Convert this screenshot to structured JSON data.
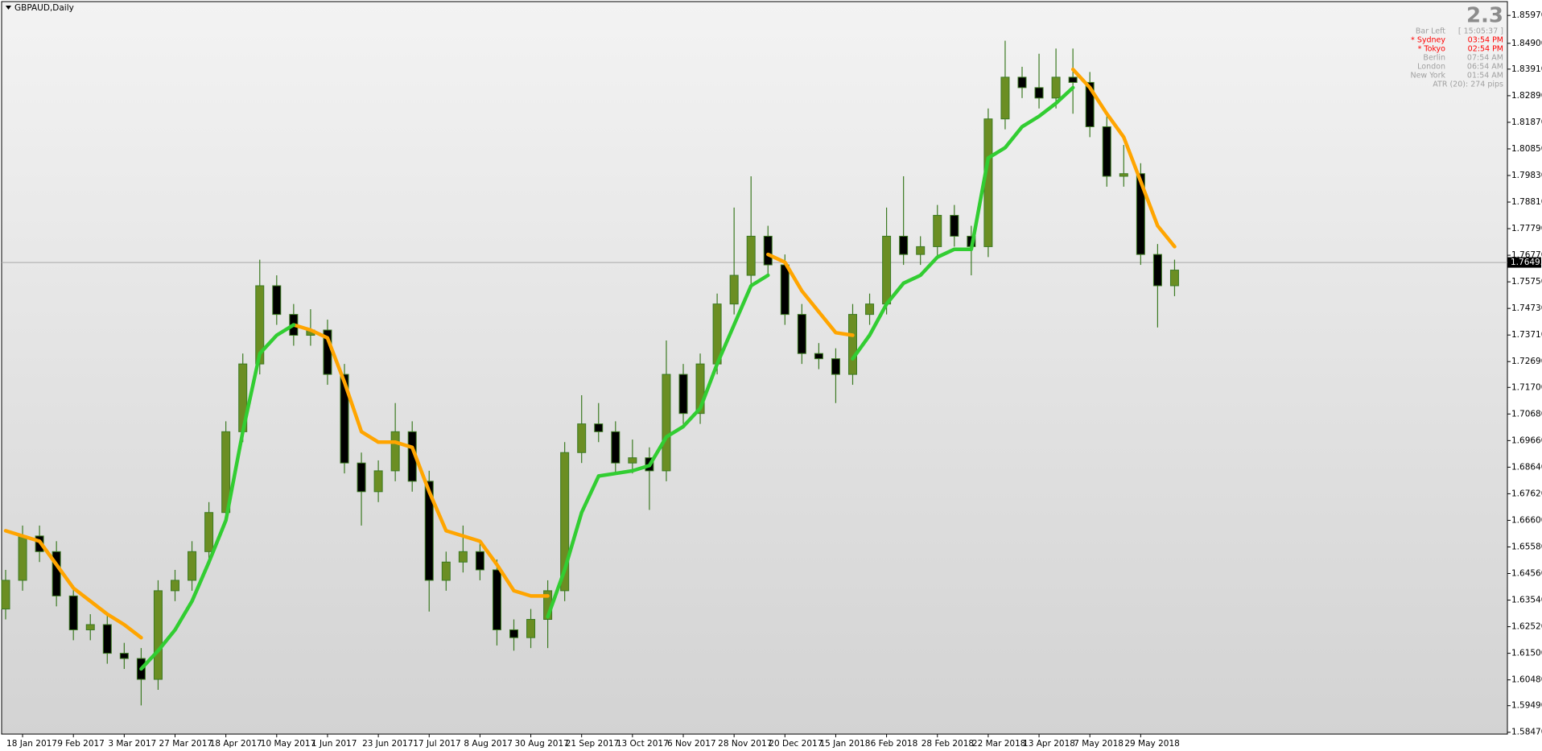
{
  "chart_data": {
    "type": "candlestick",
    "title": "GBPAUD,Daily",
    "categories": [
      null,
      "18 Jan 2017",
      null,
      null,
      "9 Feb 2017",
      null,
      null,
      "3 Mar 2017",
      null,
      null,
      "27 Mar 2017",
      null,
      null,
      "18 Apr 2017",
      null,
      null,
      "10 May 2017",
      null,
      null,
      "1 Jun 2017",
      null,
      null,
      "23 Jun 2017",
      null,
      null,
      "17 Jul 2017",
      null,
      null,
      "8 Aug 2017",
      null,
      null,
      "30 Aug 2017",
      null,
      null,
      "21 Sep 2017",
      null,
      null,
      "13 Oct 2017",
      null,
      null,
      "6 Nov 2017",
      null,
      null,
      "28 Nov 2017",
      null,
      null,
      "20 Dec 2017",
      null,
      null,
      "15 Jan 2018",
      null,
      null,
      "6 Feb 2018",
      null,
      null,
      "28 Feb 2018",
      null,
      null,
      "22 Mar 2018",
      null,
      null,
      "13 Apr 2018",
      null,
      null,
      "7 May 2018",
      null,
      null,
      "29 May 2018",
      null,
      null
    ],
    "ohlc": [
      [
        1.632,
        1.647,
        1.628,
        1.643
      ],
      [
        1.643,
        1.664,
        1.639,
        1.66
      ],
      [
        1.66,
        1.664,
        1.65,
        1.654
      ],
      [
        1.654,
        1.658,
        1.633,
        1.637
      ],
      [
        1.637,
        1.641,
        1.62,
        1.624
      ],
      [
        1.624,
        1.63,
        1.62,
        1.626
      ],
      [
        1.626,
        1.63,
        1.611,
        1.615
      ],
      [
        1.615,
        1.619,
        1.609,
        1.613
      ],
      [
        1.613,
        1.617,
        1.595,
        1.605
      ],
      [
        1.605,
        1.643,
        1.601,
        1.639
      ],
      [
        1.639,
        1.647,
        1.635,
        1.643
      ],
      [
        1.643,
        1.658,
        1.639,
        1.654
      ],
      [
        1.654,
        1.673,
        1.65,
        1.669
      ],
      [
        1.669,
        1.704,
        1.665,
        1.7
      ],
      [
        1.7,
        1.73,
        1.696,
        1.726
      ],
      [
        1.726,
        1.766,
        1.722,
        1.756
      ],
      [
        1.756,
        1.76,
        1.741,
        1.745
      ],
      [
        1.745,
        1.749,
        1.733,
        1.737
      ],
      [
        1.737,
        1.747,
        1.733,
        1.739
      ],
      [
        1.739,
        1.743,
        1.718,
        1.722
      ],
      [
        1.722,
        1.726,
        1.684,
        1.688
      ],
      [
        1.688,
        1.692,
        1.664,
        1.677
      ],
      [
        1.677,
        1.689,
        1.673,
        1.685
      ],
      [
        1.685,
        1.711,
        1.681,
        1.7
      ],
      [
        1.7,
        1.704,
        1.677,
        1.681
      ],
      [
        1.681,
        1.685,
        1.631,
        1.643
      ],
      [
        1.643,
        1.654,
        1.639,
        1.65
      ],
      [
        1.65,
        1.664,
        1.646,
        1.654
      ],
      [
        1.654,
        1.658,
        1.643,
        1.647
      ],
      [
        1.647,
        1.651,
        1.618,
        1.624
      ],
      [
        1.624,
        1.628,
        1.616,
        1.621
      ],
      [
        1.621,
        1.632,
        1.617,
        1.628
      ],
      [
        1.628,
        1.643,
        1.617,
        1.639
      ],
      [
        1.639,
        1.696,
        1.635,
        1.692
      ],
      [
        1.692,
        1.714,
        1.688,
        1.703
      ],
      [
        1.703,
        1.711,
        1.696,
        1.7
      ],
      [
        1.7,
        1.704,
        1.684,
        1.688
      ],
      [
        1.688,
        1.697,
        1.684,
        1.69
      ],
      [
        1.69,
        1.694,
        1.67,
        1.685
      ],
      [
        1.685,
        1.735,
        1.681,
        1.722
      ],
      [
        1.722,
        1.726,
        1.703,
        1.707
      ],
      [
        1.707,
        1.73,
        1.703,
        1.726
      ],
      [
        1.726,
        1.753,
        1.722,
        1.749
      ],
      [
        1.749,
        1.786,
        1.745,
        1.76
      ],
      [
        1.76,
        1.798,
        1.756,
        1.775
      ],
      [
        1.775,
        1.779,
        1.76,
        1.764
      ],
      [
        1.764,
        1.768,
        1.741,
        1.745
      ],
      [
        1.745,
        1.749,
        1.726,
        1.73
      ],
      [
        1.73,
        1.734,
        1.724,
        1.728
      ],
      [
        1.728,
        1.732,
        1.711,
        1.722
      ],
      [
        1.722,
        1.749,
        1.718,
        1.745
      ],
      [
        1.745,
        1.753,
        1.741,
        1.749
      ],
      [
        1.749,
        1.786,
        1.745,
        1.775
      ],
      [
        1.775,
        1.798,
        1.764,
        1.768
      ],
      [
        1.768,
        1.775,
        1.764,
        1.771
      ],
      [
        1.771,
        1.787,
        1.767,
        1.783
      ],
      [
        1.783,
        1.787,
        1.771,
        1.775
      ],
      [
        1.775,
        1.779,
        1.76,
        1.771
      ],
      [
        1.771,
        1.824,
        1.767,
        1.82
      ],
      [
        1.82,
        1.85,
        1.816,
        1.836
      ],
      [
        1.836,
        1.84,
        1.828,
        1.832
      ],
      [
        1.832,
        1.845,
        1.824,
        1.828
      ],
      [
        1.828,
        1.847,
        1.824,
        1.836
      ],
      [
        1.836,
        1.847,
        1.822,
        1.834
      ],
      [
        1.834,
        1.838,
        1.813,
        1.817
      ],
      [
        1.817,
        1.821,
        1.794,
        1.798
      ],
      [
        1.798,
        1.81,
        1.794,
        1.799
      ],
      [
        1.799,
        1.803,
        1.764,
        1.768
      ],
      [
        1.768,
        1.772,
        1.74,
        1.756
      ],
      [
        1.756,
        1.766,
        1.752,
        1.762
      ]
    ],
    "up_color": "#6b8e23",
    "down_color": "#000000",
    "wick_color": "#3c7a22",
    "series": [
      {
        "color": "#ffa500",
        "values": [
          1.662,
          1.66,
          1.658,
          1.649,
          1.64,
          1.635,
          1.63,
          1.626,
          1.621,
          null,
          null,
          null,
          null,
          null,
          null,
          null,
          null,
          1.741,
          1.739,
          1.736,
          1.719,
          1.7,
          1.696,
          1.696,
          1.694,
          1.677,
          1.662,
          1.66,
          1.658,
          1.649,
          1.639,
          1.637,
          1.637,
          null,
          null,
          null,
          null,
          null,
          null,
          null,
          null,
          null,
          null,
          null,
          null,
          1.768,
          1.765,
          1.754,
          1.746,
          1.738,
          1.737,
          null,
          null,
          null,
          null,
          null,
          null,
          null,
          null,
          null,
          null,
          null,
          null,
          1.839,
          1.832,
          1.822,
          1.813,
          1.796,
          1.779,
          1.771
        ]
      },
      {
        "color": "#32cd32",
        "values": [
          null,
          null,
          null,
          null,
          null,
          null,
          null,
          null,
          1.609,
          1.616,
          1.624,
          1.635,
          1.65,
          1.666,
          1.7,
          1.73,
          1.737,
          1.741,
          null,
          null,
          null,
          null,
          null,
          null,
          null,
          null,
          null,
          null,
          null,
          null,
          null,
          null,
          1.629,
          1.647,
          1.669,
          1.683,
          1.684,
          1.685,
          1.687,
          1.698,
          1.702,
          1.709,
          1.726,
          1.741,
          1.756,
          1.76,
          null,
          null,
          null,
          null,
          1.728,
          1.737,
          1.749,
          1.757,
          1.76,
          1.767,
          1.77,
          1.77,
          1.805,
          1.809,
          1.817,
          1.821,
          1.826,
          1.832,
          null,
          null,
          null,
          null,
          null,
          null
        ]
      }
    ],
    "current_price": 1.76493,
    "ylim": [
      1.584,
      1.865
    ],
    "yticks": [
      {
        "value": 1.5847,
        "label": "1.58470"
      },
      {
        "value": 1.5949,
        "label": "1.59490"
      },
      {
        "value": 1.6048,
        "label": "1.60480"
      },
      {
        "value": 1.615,
        "label": "1.61500"
      },
      {
        "value": 1.6252,
        "label": "1.62520"
      },
      {
        "value": 1.6354,
        "label": "1.63540"
      },
      {
        "value": 1.6456,
        "label": "1.64560"
      },
      {
        "value": 1.6558,
        "label": "1.65580"
      },
      {
        "value": 1.666,
        "label": "1.66600"
      },
      {
        "value": 1.6762,
        "label": "1.67620"
      },
      {
        "value": 1.6864,
        "label": "1.68640"
      },
      {
        "value": 1.6966,
        "label": "1.69660"
      },
      {
        "value": 1.7068,
        "label": "1.70680"
      },
      {
        "value": 1.717,
        "label": "1.71700"
      },
      {
        "value": 1.7269,
        "label": "1.72690"
      },
      {
        "value": 1.7371,
        "label": "1.73710"
      },
      {
        "value": 1.7473,
        "label": "1.74730"
      },
      {
        "value": 1.7575,
        "label": "1.75750"
      },
      {
        "value": 1.7677,
        "label": "1.76770"
      },
      {
        "value": 1.7779,
        "label": "1.77790"
      },
      {
        "value": 1.7881,
        "label": "1.78810"
      },
      {
        "value": 1.7983,
        "label": "1.79830"
      },
      {
        "value": 1.8085,
        "label": "1.80850"
      },
      {
        "value": 1.8187,
        "label": "1.81870"
      },
      {
        "value": 1.8289,
        "label": "1.82890"
      },
      {
        "value": 1.8391,
        "label": "1.83910"
      },
      {
        "value": 1.849,
        "label": "1.84900"
      },
      {
        "value": 1.8597,
        "label": "1.85970"
      }
    ]
  },
  "info_panel": {
    "version": "2.3",
    "rows": [
      {
        "label": "Bar Left",
        "value": "[ 15:05:37 ]",
        "color": "#a0a0a0"
      },
      {
        "label": "* Sydney",
        "value": "03:54 PM",
        "color": "#ff0000"
      },
      {
        "label": "* Tokyo",
        "value": "02:54 PM",
        "color": "#ff0000"
      },
      {
        "label": "Berlin",
        "value": "07:54 AM",
        "color": "#a0a0a0"
      },
      {
        "label": "London",
        "value": "06:54 AM",
        "color": "#a0a0a0"
      },
      {
        "label": "New York",
        "value": "01:54 AM",
        "color": "#a0a0a0"
      }
    ],
    "atr": "ATR (20): 274 pips"
  }
}
